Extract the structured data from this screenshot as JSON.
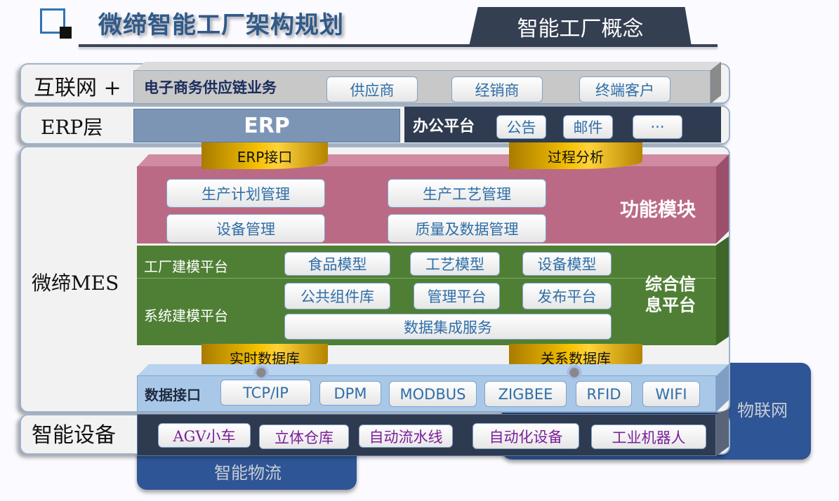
{
  "header": {
    "title": "微缔智能工厂架构规划",
    "concept_tab": "智能工厂概念"
  },
  "layers": {
    "internet": {
      "label": "互联网 +",
      "bar_title": "电子商务供应链业务",
      "items": [
        "供应商",
        "经销商",
        "终端客户"
      ]
    },
    "erp": {
      "label": "ERP层",
      "erp_title": "ERP",
      "office_title": "办公平台",
      "office_items": [
        "公告",
        "邮件",
        "···"
      ]
    },
    "mes": {
      "label": "微缔MES",
      "top_cylinders": [
        "ERP接口",
        "过程分析"
      ],
      "function_module": {
        "title": "功能模块",
        "items": [
          "生产计划管理",
          "设备管理",
          "生产工艺管理",
          "质量及数据管理"
        ]
      },
      "info_platform": {
        "title": "综合信息平台",
        "factory_modeling": "工厂建模平台",
        "factory_items": [
          "食品模型",
          "工艺模型",
          "设备模型"
        ],
        "system_modeling": "系统建模平台",
        "system_items": [
          "公共组件库",
          "管理平台",
          "发布平台"
        ],
        "integration": "数据集成服务"
      },
      "bottom_cylinders": [
        "实时数据库",
        "关系数据库"
      ],
      "data_interface": {
        "title": "数据接口",
        "items": [
          "TCP/IP",
          "DPM",
          "MODBUS",
          "ZIGBEE",
          "RFID",
          "WIFI"
        ]
      }
    },
    "devices": {
      "label": "智能设备",
      "items": [
        "AGV小车",
        "立体仓库",
        "自动流水线",
        "自动化设备",
        "工业机器人"
      ]
    }
  },
  "side_boxes": {
    "iot": "物联网",
    "logistics": "智能物流"
  },
  "colors": {
    "title": "#2f5a8a",
    "function_module": "#bb6a86",
    "info_platform": "#4f7f35",
    "data_interface": "#a9c8e8",
    "devices": "#2e3a4f",
    "side_box": "#2e5595"
  }
}
